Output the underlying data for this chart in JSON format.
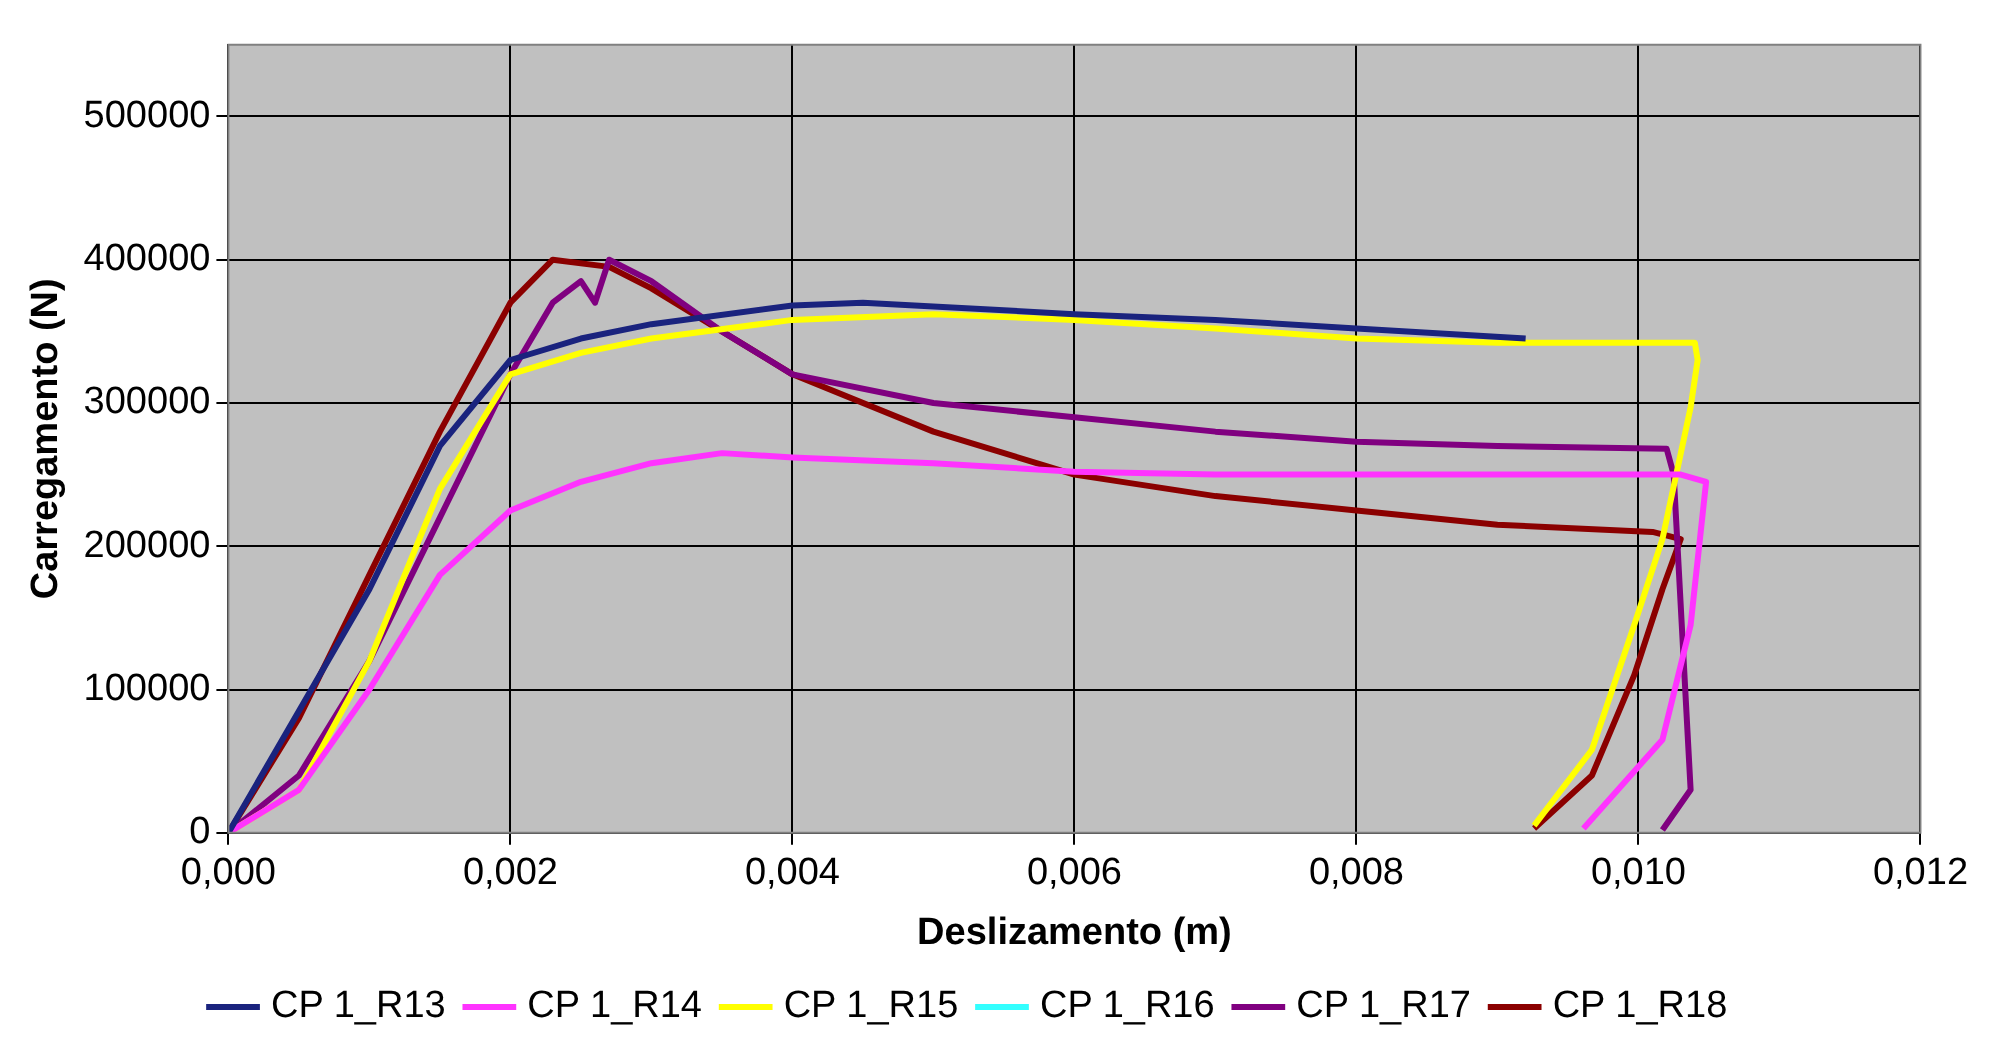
{
  "chart_data": {
    "type": "line",
    "xlabel": "Deslizamento (m)",
    "ylabel": "Carregamento (N)",
    "xlim": [
      0,
      0.012
    ],
    "xticks": [
      {
        "value": 0,
        "label": "0,000"
      },
      {
        "value": 0.002,
        "label": "0,002"
      },
      {
        "value": 0.004,
        "label": "0,004"
      },
      {
        "value": 0.006,
        "label": "0,006"
      },
      {
        "value": 0.008,
        "label": "0,008"
      },
      {
        "value": 0.01,
        "label": "0,010"
      },
      {
        "value": 0.012,
        "label": "0,012"
      }
    ],
    "ylim": [
      0,
      550000
    ],
    "yticks": [
      0,
      100000,
      200000,
      300000,
      400000,
      500000
    ],
    "grid": true,
    "legend": "bottom",
    "marker": "none",
    "line_style": "solid",
    "series": [
      {
        "name": "CP 1_R13",
        "color": "#1a237e",
        "x": [
          0,
          0.001,
          0.0015,
          0.002,
          0.0025,
          0.003,
          0.004,
          0.0045,
          0.006,
          0.007,
          0.008,
          0.0092
        ],
        "values": [
          0,
          170000,
          270000,
          330000,
          345000,
          355000,
          368000,
          370000,
          362000,
          358000,
          352000,
          345000
        ]
      },
      {
        "name": "CP 1_R14",
        "color": "#ff33ff",
        "x": [
          0,
          0.0005,
          0.001,
          0.0015,
          0.002,
          0.0025,
          0.003,
          0.0035,
          0.004,
          0.005,
          0.006,
          0.007,
          0.008,
          0.009,
          0.0103,
          0.01048,
          0.01037,
          0.01017,
          0.00961
        ],
        "values": [
          0,
          30000,
          100000,
          180000,
          225000,
          245000,
          258000,
          265000,
          262000,
          258000,
          252000,
          250000,
          250000,
          250000,
          250000,
          245000,
          145000,
          65000,
          3000
        ]
      },
      {
        "name": "CP 1_R15",
        "color": "#ffff00",
        "x": [
          0,
          0.0005,
          0.001,
          0.0015,
          0.002,
          0.0025,
          0.003,
          0.004,
          0.005,
          0.006,
          0.007,
          0.008,
          0.009,
          0.0104,
          0.01042,
          0.01037,
          0.01017,
          0.00997,
          0.00967,
          0.00926
        ],
        "values": [
          0,
          30000,
          120000,
          240000,
          320000,
          335000,
          345000,
          358000,
          362000,
          358000,
          352000,
          345000,
          342000,
          342000,
          330000,
          297000,
          205000,
          145000,
          58000,
          5000
        ]
      },
      {
        "name": "CP 1_R16",
        "color": "#33ffff"
      },
      {
        "name": "CP 1_R17",
        "color": "#800080",
        "x": [
          0,
          0.0005,
          0.001,
          0.0015,
          0.002,
          0.0023,
          0.0025,
          0.0026,
          0.0027,
          0.003,
          0.0035,
          0.004,
          0.005,
          0.006,
          0.007,
          0.008,
          0.009,
          0.0102,
          0.01025,
          0.01037,
          0.01017
        ],
        "values": [
          0,
          40000,
          120000,
          220000,
          320000,
          370000,
          385000,
          370000,
          400000,
          385000,
          350000,
          320000,
          300000,
          290000,
          280000,
          273000,
          270000,
          268000,
          250000,
          30000,
          2000
        ]
      },
      {
        "name": "CP 1_R18",
        "color": "#8b0000",
        "x": [
          0,
          0.0005,
          0.001,
          0.0015,
          0.002,
          0.0023,
          0.0027,
          0.003,
          0.0035,
          0.004,
          0.005,
          0.006,
          0.007,
          0.008,
          0.009,
          0.0101,
          0.0103,
          0.01017,
          0.00997,
          0.00967,
          0.00926
        ],
        "values": [
          0,
          80000,
          180000,
          280000,
          370000,
          400000,
          395000,
          380000,
          350000,
          320000,
          280000,
          250000,
          235000,
          225000,
          215000,
          210000,
          205000,
          170000,
          110000,
          40000,
          3000
        ]
      }
    ]
  }
}
